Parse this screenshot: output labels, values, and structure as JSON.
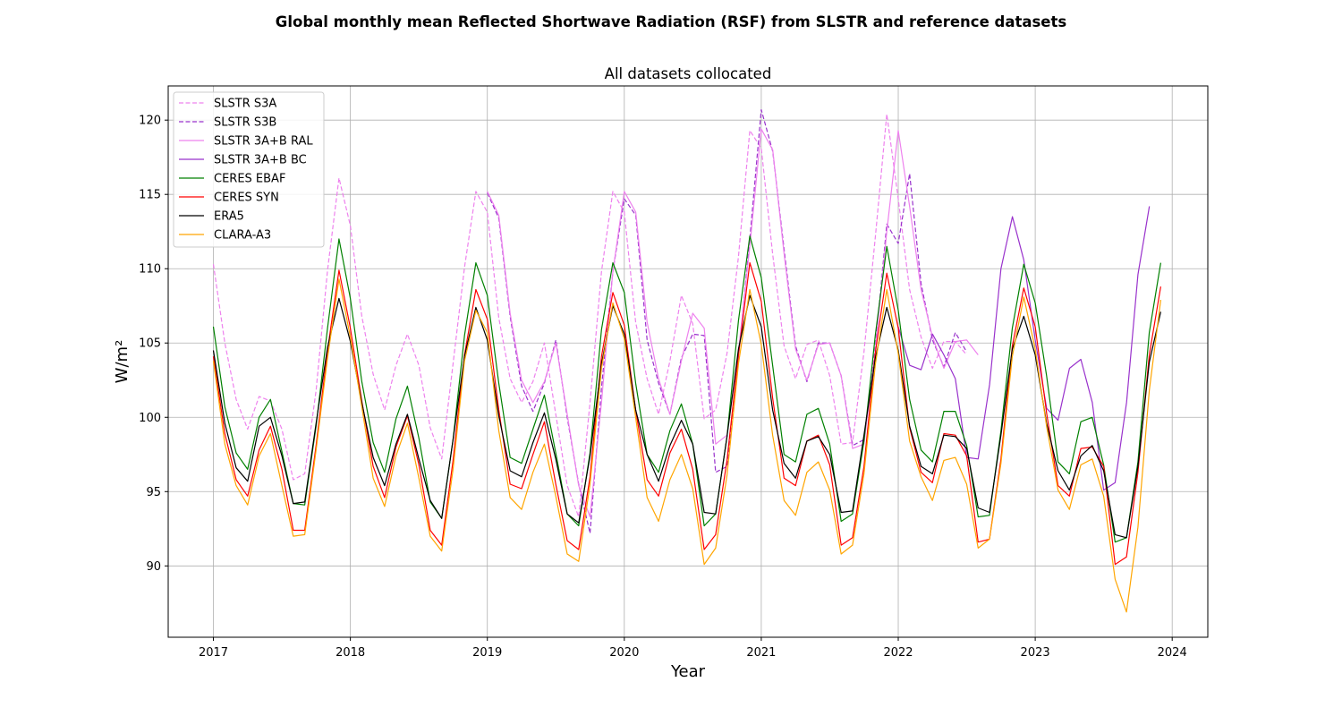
{
  "figure_title": "Global monthly mean Reflected Shortwave Radiation (RSF) from SLSTR and reference datasets",
  "chart_data": {
    "type": "line",
    "title": "All datasets collocated",
    "xlabel": "Year",
    "ylabel": "W/m²",
    "xlim": [
      2016.67,
      2024.26
    ],
    "ylim": [
      85.2,
      122.3
    ],
    "xticks": [
      2017,
      2018,
      2019,
      2020,
      2021,
      2022,
      2023,
      2024
    ],
    "yticks": [
      90,
      95,
      100,
      105,
      110,
      115,
      120
    ],
    "grid": true,
    "legend_position": "upper-left",
    "x_unit": "decimal year (monthly, Jan 2017 = 2017.0)",
    "x_start": 2017.0,
    "x_step": 0.08333,
    "series": [
      {
        "name": "SLSTR S3A",
        "color": "#ee82ee",
        "style": "dashed",
        "values": [
          110.3,
          105.0,
          101.2,
          99.2,
          101.4,
          101.1,
          99.2,
          95.8,
          96.2,
          101.8,
          109.9,
          116.1,
          112.9,
          106.8,
          102.9,
          100.5,
          103.5,
          105.6,
          103.5,
          99.3,
          97.2,
          103.6,
          110.1,
          115.2,
          113.8,
          106.7,
          102.6,
          101.0,
          102.4,
          105.0,
          100.2,
          95.4,
          93.3,
          101.0,
          109.8,
          115.2,
          113.8,
          106.4,
          102.6,
          100.2,
          103.8,
          108.2,
          106.3,
          99.9,
          100.5,
          104.3,
          110.8,
          119.3,
          118.1,
          111.0,
          104.8,
          102.6,
          104.9,
          105.2,
          102.8,
          98.2,
          98.3,
          104.4,
          112.2,
          120.4,
          114.7,
          108.6,
          105.4,
          103.3,
          105.1,
          105.1,
          104.2
        ]
      },
      {
        "name": "SLSTR S3B",
        "color": "#9932cc",
        "style": "dashed",
        "x_start": 2019.0,
        "values": [
          115.1,
          113.4,
          106.8,
          102.1,
          100.4,
          102.3,
          105.2,
          100.0,
          95.5,
          92.2,
          102.0,
          109.8,
          114.7,
          113.6,
          105.2,
          102.3,
          100.2,
          104.0,
          105.6,
          105.5,
          96.3,
          96.7,
          104.1,
          112.0,
          120.7,
          117.9,
          111.3,
          104.8,
          102.4,
          105.0,
          105.0,
          102.8,
          98.1,
          98.5,
          104.8,
          113.0,
          111.7,
          116.4,
          109.0,
          105.2,
          103.4,
          105.7,
          104.4
        ]
      },
      {
        "name": "SLSTR 3A+B RAL",
        "color": "#ee82ee",
        "style": "solid",
        "x_start": 2019.0,
        "values": [
          115.2,
          113.6,
          107.0,
          102.5,
          101.0,
          102.4,
          105.0,
          100.2,
          95.4,
          93.3,
          101.0,
          109.8,
          115.2,
          113.8,
          106.4,
          102.6,
          100.2,
          103.8,
          107.0,
          106.0,
          98.2,
          98.8,
          104.4,
          111.5,
          119.4,
          118.0,
          111.0,
          104.6,
          102.5,
          104.9,
          105.0,
          102.8,
          97.9,
          98.2,
          104.5,
          112.5,
          119.3,
          114.2,
          108.6,
          105.4,
          103.3,
          105.1,
          105.2,
          104.2
        ]
      },
      {
        "name": "SLSTR 3A+B BC",
        "color": "#9932cc",
        "style": "solid",
        "x_start": 2022.0,
        "values": [
          106.1,
          103.5,
          103.2,
          105.6,
          104.2,
          102.6,
          97.3,
          97.2,
          102.2,
          110.0,
          113.5,
          110.6,
          105.2,
          100.6,
          99.8,
          103.3,
          103.9,
          101.0,
          95.1,
          95.6,
          101.0,
          109.6,
          114.2
        ]
      },
      {
        "name": "CERES EBAF",
        "color": "#008000",
        "style": "solid",
        "values": [
          106.1,
          100.7,
          97.6,
          96.5,
          100.0,
          101.2,
          97.7,
          94.2,
          94.1,
          99.4,
          106.0,
          112.0,
          108.0,
          102.4,
          98.3,
          96.3,
          99.9,
          102.1,
          98.6,
          94.3,
          93.2,
          98.5,
          105.5,
          110.4,
          108.2,
          102.3,
          97.3,
          96.9,
          99.2,
          101.5,
          97.6,
          93.5,
          92.7,
          97.6,
          105.9,
          110.4,
          108.4,
          102.3,
          97.5,
          96.3,
          99.1,
          100.9,
          98.2,
          92.7,
          93.5,
          98.7,
          106.5,
          112.2,
          109.4,
          103.5,
          97.5,
          97.0,
          100.2,
          100.6,
          98.2,
          93.0,
          93.5,
          98.4,
          105.6,
          111.5,
          107.2,
          101.2,
          97.8,
          97.0,
          100.4,
          100.4,
          98.1,
          93.3,
          93.4,
          99.1,
          106.0,
          110.3,
          107.7,
          102.8,
          97.0,
          96.2,
          99.7,
          100.0,
          96.8,
          91.6,
          91.9,
          97.0,
          105.7,
          110.4
        ]
      },
      {
        "name": "CERES SYN",
        "color": "#ff0000",
        "style": "solid",
        "values": [
          104.1,
          98.9,
          95.8,
          94.7,
          97.8,
          99.4,
          96.5,
          92.4,
          92.4,
          98.1,
          104.5,
          109.9,
          106.0,
          101.1,
          96.7,
          94.6,
          98.0,
          100.1,
          96.8,
          92.4,
          91.4,
          97.1,
          104.2,
          108.6,
          106.6,
          100.5,
          95.5,
          95.2,
          97.5,
          99.7,
          95.5,
          91.7,
          91.1,
          96.0,
          104.1,
          108.4,
          106.2,
          100.5,
          95.8,
          94.7,
          97.6,
          99.2,
          96.5,
          91.1,
          92.1,
          97.1,
          104.2,
          110.4,
          107.8,
          101.3,
          95.9,
          95.4,
          98.4,
          98.8,
          96.8,
          91.4,
          91.9,
          96.7,
          104.4,
          109.7,
          106.0,
          99.3,
          96.3,
          95.6,
          98.9,
          98.8,
          97.4,
          91.6,
          91.8,
          97.2,
          104.8,
          108.7,
          106.1,
          100.3,
          95.4,
          94.7,
          97.9,
          98.0,
          96.7,
          90.1,
          90.6,
          96.3,
          104.2,
          108.8
        ]
      },
      {
        "name": "ERA5",
        "color": "#000000",
        "style": "solid",
        "values": [
          104.5,
          99.6,
          96.6,
          95.7,
          99.4,
          100.0,
          97.4,
          94.2,
          94.3,
          99.6,
          104.7,
          108.0,
          105.1,
          101.0,
          97.3,
          95.4,
          98.2,
          100.2,
          97.2,
          94.4,
          93.2,
          98.5,
          104.1,
          107.4,
          105.2,
          100.1,
          96.4,
          96.0,
          98.3,
          100.3,
          97.2,
          93.5,
          92.9,
          97.4,
          103.6,
          107.5,
          105.6,
          100.5,
          97.5,
          95.7,
          98.1,
          99.8,
          98.2,
          93.6,
          93.5,
          98.7,
          104.6,
          108.2,
          106.1,
          100.5,
          96.9,
          95.9,
          98.4,
          98.7,
          97.5,
          93.6,
          93.7,
          98.8,
          104.0,
          107.4,
          104.5,
          99.4,
          96.7,
          96.2,
          98.8,
          98.7,
          97.9,
          93.9,
          93.6,
          98.8,
          104.6,
          106.8,
          104.2,
          99.6,
          96.4,
          95.1,
          97.4,
          98.1,
          96.4,
          92.1,
          91.9,
          96.7,
          103.7,
          107.1
        ]
      },
      {
        "name": "CLARA-A3",
        "color": "#ffa500",
        "style": "solid",
        "values": [
          103.8,
          98.2,
          95.4,
          94.1,
          97.4,
          98.9,
          95.4,
          92.0,
          92.1,
          97.8,
          104.0,
          109.3,
          105.4,
          100.7,
          95.9,
          94.0,
          97.4,
          99.6,
          95.9,
          92.0,
          91.0,
          96.5,
          103.8,
          107.2,
          105.7,
          99.1,
          94.6,
          93.8,
          96.3,
          98.2,
          94.7,
          90.8,
          90.3,
          95.5,
          103.3,
          107.7,
          105.3,
          100.0,
          94.6,
          93.0,
          95.8,
          97.5,
          95.2,
          90.1,
          91.2,
          96.1,
          103.6,
          108.6,
          104.9,
          98.8,
          94.4,
          93.4,
          96.3,
          97.0,
          95.1,
          90.8,
          91.4,
          96.2,
          103.6,
          108.6,
          104.3,
          98.4,
          96.0,
          94.4,
          97.1,
          97.3,
          95.5,
          91.2,
          91.8,
          96.9,
          104.1,
          108.1,
          104.6,
          99.4,
          95.1,
          93.8,
          96.8,
          97.2,
          94.7,
          89.1,
          86.9,
          92.6,
          101.8,
          107.9
        ]
      }
    ]
  }
}
